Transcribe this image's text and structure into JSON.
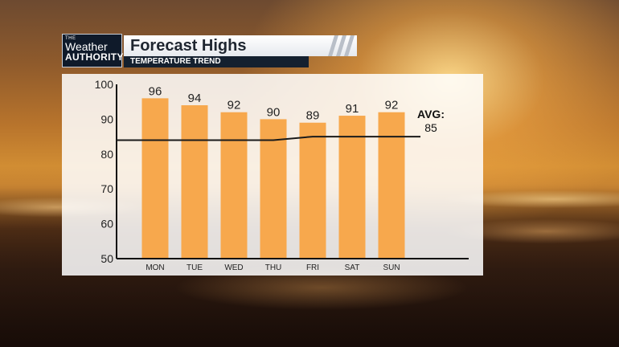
{
  "branding": {
    "small": "THE",
    "line1": "Weather",
    "line2": "AUTHORITY"
  },
  "header": {
    "title": "Forecast Highs",
    "subtitle": "TEMPERATURE TREND"
  },
  "colors": {
    "bar": "#f7a84d",
    "avg_line": "#1a1a1a",
    "header_dark": "#14202f"
  },
  "chart_data": {
    "type": "bar",
    "title": "Forecast Highs",
    "subtitle": "TEMPERATURE TREND",
    "categories": [
      "MON",
      "TUE",
      "WED",
      "THU",
      "FRI",
      "SAT",
      "SUN"
    ],
    "series": [
      {
        "values": [
          96,
          94,
          92,
          90,
          89,
          91,
          92
        ]
      }
    ],
    "average_line": [
      84,
      84,
      84,
      84,
      85,
      85,
      85
    ],
    "annotation": {
      "label": "AVG:",
      "value": "85"
    },
    "ylim": [
      50,
      100
    ],
    "yticks": [
      "50",
      "60",
      "70",
      "80",
      "90",
      "100"
    ],
    "grid": false
  }
}
